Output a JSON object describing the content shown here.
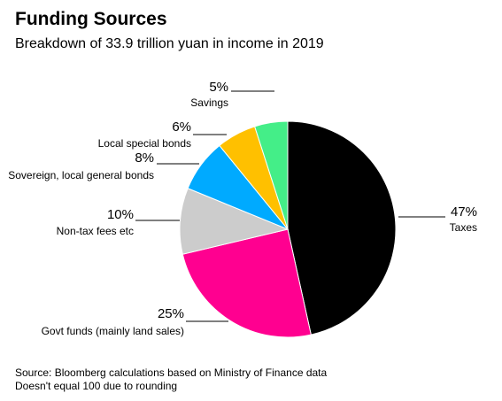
{
  "header": {
    "title": "Funding Sources",
    "subtitle": "Breakdown of 33.9 trillion yuan in income in 2019"
  },
  "footer": {
    "source": "Source: Bloomberg calculations based on Ministry of Finance data",
    "note": "Doesn't equal 100 due to rounding"
  },
  "chart_data": {
    "type": "pie",
    "title": "Funding Sources",
    "subtitle": "Breakdown of 33.9 trillion yuan in income in 2019",
    "slices": [
      {
        "label": "Taxes",
        "value": 47,
        "value_label": "47%",
        "color": "#000000"
      },
      {
        "label": "Govt funds (mainly land sales)",
        "value": 25,
        "value_label": "25%",
        "color": "#ff0090"
      },
      {
        "label": "Non-tax fees etc",
        "value": 10,
        "value_label": "10%",
        "color": "#cccccc"
      },
      {
        "label": "Sovereign, local general bonds",
        "value": 8,
        "value_label": "8%",
        "color": "#00aaff"
      },
      {
        "label": "Local special bonds",
        "value": 6,
        "value_label": "6%",
        "color": "#ffc000"
      },
      {
        "label": "Savings",
        "value": 5,
        "value_label": "5%",
        "color": "#44ee88"
      }
    ]
  }
}
